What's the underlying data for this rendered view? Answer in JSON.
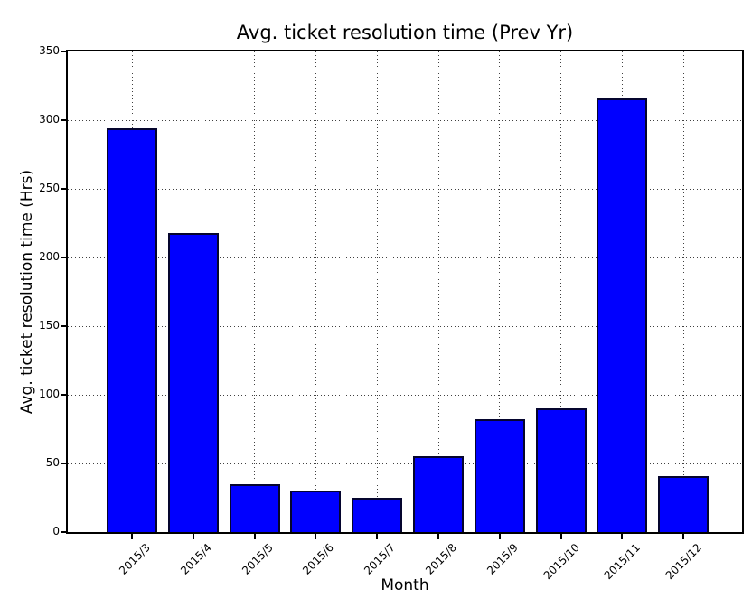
{
  "chart_data": {
    "type": "bar",
    "title": "Avg. ticket resolution time (Prev Yr)",
    "xlabel": "Month",
    "ylabel": "Avg. ticket resolution time (Hrs)",
    "categories": [
      "2015/3",
      "2015/4",
      "2015/5",
      "2015/6",
      "2015/7",
      "2015/8",
      "2015/9",
      "2015/10",
      "2015/11",
      "2015/12"
    ],
    "values": [
      294,
      218,
      35,
      30,
      25,
      55,
      82,
      90,
      316,
      41
    ],
    "ylim": [
      0,
      350
    ],
    "yticks": [
      0,
      50,
      100,
      150,
      200,
      250,
      300,
      350
    ],
    "grid": true,
    "grid_style": "dotted",
    "legend": "none",
    "bar_color": "#0000ff",
    "bar_edge_color": "#05052e",
    "background_color": "#ffffff"
  }
}
